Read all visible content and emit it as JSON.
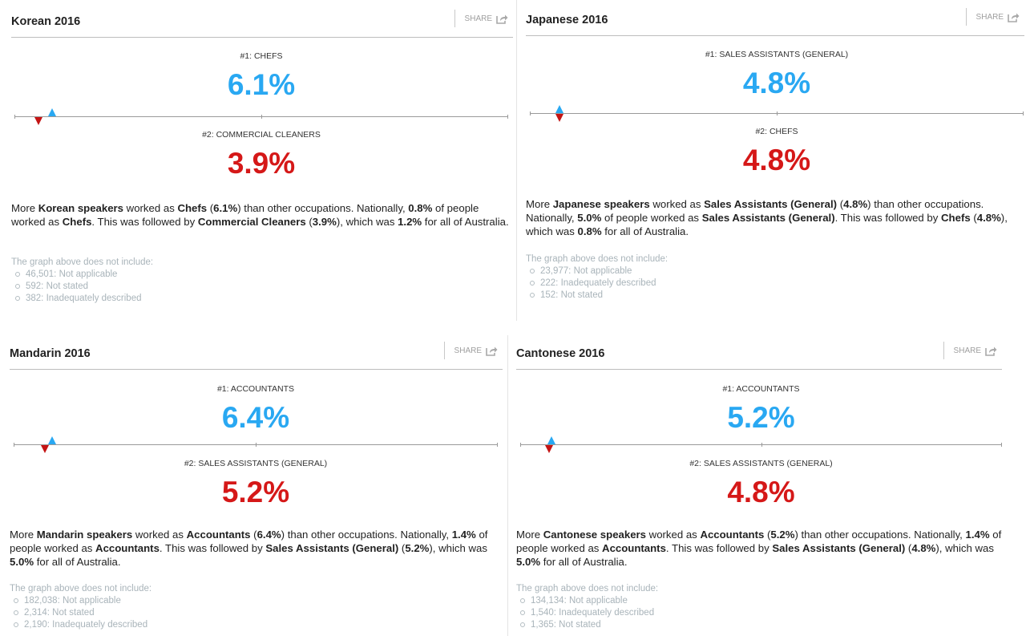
{
  "share_label": "SHARE",
  "colors": {
    "top": "#29a8f2",
    "second": "#d51818"
  },
  "note_title": "The graph above does not include:",
  "panels": [
    {
      "title": "Korean 2016",
      "rank1": {
        "label": "#1: CHEFS",
        "value": "6.1%",
        "fraction": 0.061
      },
      "rank2": {
        "label": "#2: COMMERCIAL CLEANERS",
        "value": "3.9%",
        "fraction": 0.039
      },
      "desc": {
        "t1": "More ",
        "lang": "Korean speakers",
        "t2": " worked as ",
        "occ1": "Chefs",
        "t3": " (",
        "pct1": "6.1%",
        "t4": ") than other occupations. Nationally, ",
        "nat1": "0.8%",
        "t5": " of people worked as ",
        "occ1b": "Chefs",
        "t6": ". This was followed by ",
        "occ2": "Commercial Cleaners",
        "t7": " (",
        "pct2": "3.9%",
        "t8": "), which was ",
        "nat2": "1.2%",
        "t9": " for all of Australia."
      },
      "excluded": [
        "46,501: Not applicable",
        "592: Not stated",
        "382: Inadequately described"
      ]
    },
    {
      "title": "Japanese 2016",
      "rank1": {
        "label": "#1: SALES ASSISTANTS (GENERAL)",
        "value": "4.8%",
        "fraction": 0.048
      },
      "rank2": {
        "label": "#2: CHEFS",
        "value": "4.8%",
        "fraction": 0.048
      },
      "desc": {
        "t1": "More ",
        "lang": "Japanese speakers",
        "t2": " worked as ",
        "occ1": "Sales Assistants (General)",
        "t3": " (",
        "pct1": "4.8%",
        "t4": ") than other occupations. Nationally, ",
        "nat1": "5.0%",
        "t5": " of people worked as ",
        "occ1b": "Sales Assistants (General)",
        "t6": ". This was followed by ",
        "occ2": "Chefs",
        "t7": " (",
        "pct2": "4.8%",
        "t8": "), which was ",
        "nat2": "0.8%",
        "t9": " for all of Australia."
      },
      "excluded": [
        "23,977: Not applicable",
        "222: Inadequately described",
        "152: Not stated"
      ]
    },
    {
      "title": "Mandarin 2016",
      "rank1": {
        "label": "#1: ACCOUNTANTS",
        "value": "6.4%",
        "fraction": 0.064
      },
      "rank2": {
        "label": "#2: SALES ASSISTANTS (GENERAL)",
        "value": "5.2%",
        "fraction": 0.052
      },
      "desc": {
        "t1": "More ",
        "lang": "Mandarin speakers",
        "t2": " worked as ",
        "occ1": "Accountants",
        "t3": " (",
        "pct1": "6.4%",
        "t4": ") than other occupations. Nationally, ",
        "nat1": "1.4%",
        "t5": " of people worked as ",
        "occ1b": "Accountants",
        "t6": ". This was followed by ",
        "occ2": "Sales Assistants (General)",
        "t7": " (",
        "pct2": "5.2%",
        "t8": "), which was ",
        "nat2": "5.0%",
        "t9": " for all of Australia."
      },
      "excluded": [
        "182,038: Not applicable",
        "2,314: Not stated",
        "2,190: Inadequately described"
      ]
    },
    {
      "title": "Cantonese 2016",
      "rank1": {
        "label": "#1: ACCOUNTANTS",
        "value": "5.2%",
        "fraction": 0.052
      },
      "rank2": {
        "label": "#2: SALES ASSISTANTS (GENERAL)",
        "value": "4.8%",
        "fraction": 0.048
      },
      "desc": {
        "t1": "More ",
        "lang": "Cantonese speakers",
        "t2": " worked as ",
        "occ1": "Accountants",
        "t3": " (",
        "pct1": "5.2%",
        "t4": ") than other occupations. Nationally, ",
        "nat1": "1.4%",
        "t5": " of people worked as ",
        "occ1b": "Accountants",
        "t6": ". This was followed by ",
        "occ2": "Sales Assistants (General)",
        "t7": " (",
        "pct2": "4.8%",
        "t8": "), which was ",
        "nat2": "5.0%",
        "t9": " for all of Australia."
      },
      "excluded": [
        "134,134: Not applicable",
        "1,540: Inadequately described",
        "1,365: Not stated"
      ]
    }
  ]
}
